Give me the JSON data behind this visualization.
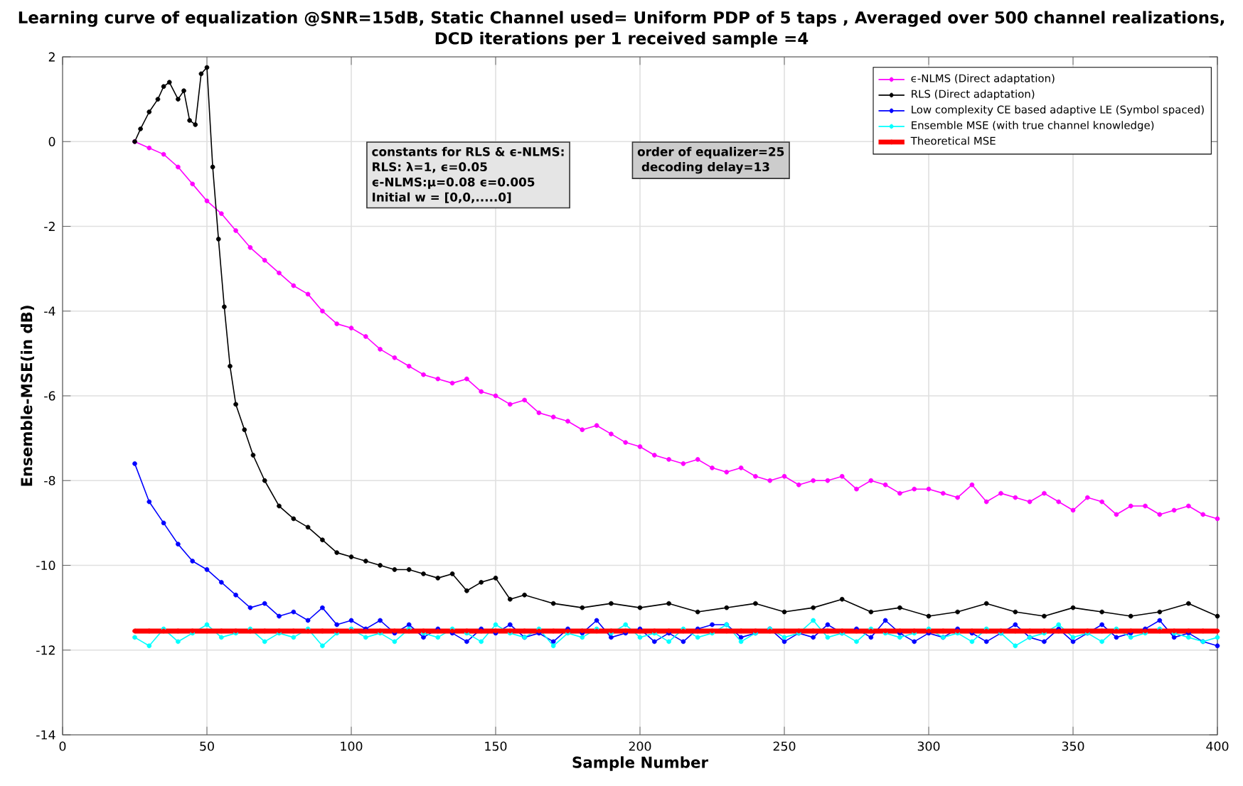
{
  "chart_data": {
    "type": "line",
    "title": "Learning curve of equalization @SNR=15dB, Static Channel used= Uniform PDP of 5 taps ,  Averaged over 500 channel realizations,",
    "subtitle": "DCD iterations per 1 received sample =4",
    "xlabel": "Sample Number",
    "ylabel": "Ensemble-MSE(in dB)",
    "annotations": [
      "constants for RLS & ϵ-NLMS:",
      "RLS: λ=1, ϵ=0.05",
      "ϵ-NLMS:μ=0.08 ϵ=0.005",
      "Initial w = [0,0,.....0]",
      "order of equalizer=25",
      " decoding delay=13"
    ],
    "xlim": [
      0,
      400
    ],
    "ylim": [
      -14,
      2
    ],
    "xticks": [
      0,
      50,
      100,
      150,
      200,
      250,
      300,
      350,
      400
    ],
    "yticks": [
      -14,
      -12,
      -10,
      -8,
      -6,
      -4,
      -2,
      0,
      2
    ],
    "grid": true,
    "legend": "top right",
    "marker": "circle",
    "line_style": "solid",
    "x": [
      25,
      30,
      35,
      40,
      45,
      50,
      55,
      60,
      65,
      70,
      75,
      80,
      85,
      90,
      95,
      100,
      105,
      110,
      115,
      120,
      125,
      130,
      135,
      140,
      145,
      150,
      155,
      160,
      165,
      170,
      175,
      180,
      185,
      190,
      195,
      200,
      205,
      210,
      215,
      220,
      225,
      230,
      235,
      240,
      245,
      250,
      255,
      260,
      265,
      270,
      275,
      280,
      285,
      290,
      295,
      300,
      305,
      310,
      315,
      320,
      325,
      330,
      335,
      340,
      345,
      350,
      355,
      360,
      365,
      370,
      375,
      380,
      385,
      390,
      395,
      400
    ],
    "series": [
      {
        "name": "ϵ-NLMS (Direct adaptation)",
        "color": "#ff00ff",
        "values": [
          0,
          -0.15,
          -0.3,
          -0.6,
          -1.0,
          -1.4,
          -1.7,
          -2.1,
          -2.5,
          -2.8,
          -3.1,
          -3.4,
          -3.6,
          -4.0,
          -4.3,
          -4.4,
          -4.6,
          -4.9,
          -5.1,
          -5.3,
          -5.5,
          -5.6,
          -5.7,
          -5.6,
          -5.9,
          -6.0,
          -6.2,
          -6.1,
          -6.4,
          -6.5,
          -6.6,
          -6.8,
          -6.7,
          -6.9,
          -7.1,
          -7.2,
          -7.4,
          -7.5,
          -7.6,
          -7.5,
          -7.7,
          -7.8,
          -7.7,
          -7.9,
          -8.0,
          -7.9,
          -8.1,
          -8.0,
          -8.0,
          -7.9,
          -8.2,
          -8.0,
          -8.1,
          -8.3,
          -8.2,
          -8.2,
          -8.3,
          -8.4,
          -8.1,
          -8.5,
          -8.3,
          -8.4,
          -8.5,
          -8.3,
          -8.5,
          -8.7,
          -8.4,
          -8.5,
          -8.8,
          -8.6,
          -8.6,
          -8.8,
          -8.7,
          -8.6,
          -8.8,
          -8.9
        ]
      },
      {
        "name": "RLS (Direct adaptation)",
        "color": "#000000",
        "x": [
          25,
          27,
          30,
          33,
          35,
          37,
          40,
          42,
          44,
          46,
          48,
          50,
          52,
          54,
          56,
          58,
          60,
          63,
          66,
          70,
          75,
          80,
          85,
          90,
          95,
          100,
          105,
          110,
          115,
          120,
          125,
          130,
          135,
          140,
          145,
          150,
          155,
          160,
          170,
          180,
          190,
          200,
          210,
          220,
          230,
          240,
          250,
          260,
          270,
          280,
          290,
          300,
          310,
          320,
          330,
          340,
          350,
          360,
          370,
          380,
          390,
          400
        ],
        "values": [
          0,
          0.3,
          0.7,
          1.0,
          1.3,
          1.4,
          1.0,
          1.2,
          0.5,
          0.4,
          1.6,
          1.75,
          -0.6,
          -2.3,
          -3.9,
          -5.3,
          -6.2,
          -6.8,
          -7.4,
          -8.0,
          -8.6,
          -8.9,
          -9.1,
          -9.4,
          -9.7,
          -9.8,
          -9.9,
          -10.0,
          -10.1,
          -10.1,
          -10.2,
          -10.3,
          -10.2,
          -10.6,
          -10.4,
          -10.3,
          -10.8,
          -10.7,
          -10.9,
          -11.0,
          -10.9,
          -11.0,
          -10.9,
          -11.1,
          -11.0,
          -10.9,
          -11.1,
          -11.0,
          -10.8,
          -11.1,
          -11.0,
          -11.2,
          -11.1,
          -10.9,
          -11.1,
          -11.2,
          -11.0,
          -11.1,
          -11.2,
          -11.1,
          -10.9,
          -11.2
        ]
      },
      {
        "name": "Low complexity CE based adaptive LE (Symbol spaced)",
        "color": "#0000ff",
        "values": [
          -7.6,
          -8.5,
          -9.0,
          -9.5,
          -9.9,
          -10.1,
          -10.4,
          -10.7,
          -11.0,
          -10.9,
          -11.2,
          -11.1,
          -11.3,
          -11.0,
          -11.4,
          -11.3,
          -11.5,
          -11.3,
          -11.6,
          -11.4,
          -11.7,
          -11.5,
          -11.6,
          -11.8,
          -11.5,
          -11.6,
          -11.4,
          -11.7,
          -11.6,
          -11.8,
          -11.5,
          -11.6,
          -11.3,
          -11.7,
          -11.6,
          -11.5,
          -11.8,
          -11.6,
          -11.8,
          -11.5,
          -11.4,
          -11.4,
          -11.7,
          -11.6,
          -11.5,
          -11.8,
          -11.6,
          -11.7,
          -11.4,
          -11.6,
          -11.5,
          -11.7,
          -11.3,
          -11.6,
          -11.8,
          -11.6,
          -11.7,
          -11.5,
          -11.6,
          -11.8,
          -11.6,
          -11.4,
          -11.7,
          -11.8,
          -11.5,
          -11.8,
          -11.6,
          -11.4,
          -11.7,
          -11.6,
          -11.5,
          -11.3,
          -11.7,
          -11.6,
          -11.8,
          -11.9
        ]
      },
      {
        "name": "Ensemble MSE (with true channel knowledge)",
        "color": "#00ffff",
        "values": [
          -11.7,
          -11.9,
          -11.5,
          -11.8,
          -11.6,
          -11.4,
          -11.7,
          -11.6,
          -11.5,
          -11.8,
          -11.6,
          -11.7,
          -11.5,
          -11.9,
          -11.6,
          -11.5,
          -11.7,
          -11.6,
          -11.8,
          -11.5,
          -11.6,
          -11.7,
          -11.5,
          -11.6,
          -11.8,
          -11.4,
          -11.6,
          -11.7,
          -11.5,
          -11.9,
          -11.6,
          -11.7,
          -11.5,
          -11.6,
          -11.4,
          -11.7,
          -11.6,
          -11.8,
          -11.5,
          -11.7,
          -11.6,
          -11.4,
          -11.8,
          -11.6,
          -11.5,
          -11.7,
          -11.6,
          -11.3,
          -11.7,
          -11.6,
          -11.8,
          -11.5,
          -11.6,
          -11.7,
          -11.6,
          -11.5,
          -11.7,
          -11.6,
          -11.8,
          -11.5,
          -11.6,
          -11.9,
          -11.7,
          -11.6,
          -11.4,
          -11.7,
          -11.6,
          -11.8,
          -11.5,
          -11.7,
          -11.6,
          -11.5,
          -11.6,
          -11.7,
          -11.8,
          -11.7
        ]
      },
      {
        "name": "Theoretical MSE",
        "color": "#ff0000",
        "values": [
          -11.55,
          -11.55,
          -11.55,
          -11.55,
          -11.55,
          -11.55,
          -11.55,
          -11.55,
          -11.55,
          -11.55,
          -11.55,
          -11.55,
          -11.55,
          -11.55,
          -11.55,
          -11.55,
          -11.55,
          -11.55,
          -11.55,
          -11.55,
          -11.55,
          -11.55,
          -11.55,
          -11.55,
          -11.55,
          -11.55,
          -11.55,
          -11.55,
          -11.55,
          -11.55,
          -11.55,
          -11.55,
          -11.55,
          -11.55,
          -11.55,
          -11.55,
          -11.55,
          -11.55,
          -11.55,
          -11.55,
          -11.55,
          -11.55,
          -11.55,
          -11.55,
          -11.55,
          -11.55,
          -11.55,
          -11.55,
          -11.55,
          -11.55,
          -11.55,
          -11.55,
          -11.55,
          -11.55,
          -11.55,
          -11.55,
          -11.55,
          -11.55,
          -11.55,
          -11.55,
          -11.55,
          -11.55,
          -11.55,
          -11.55,
          -11.55,
          -11.55,
          -11.55,
          -11.55,
          -11.55,
          -11.55,
          -11.55,
          -11.55,
          -11.55,
          -11.55,
          -11.55,
          -11.55
        ]
      }
    ]
  }
}
